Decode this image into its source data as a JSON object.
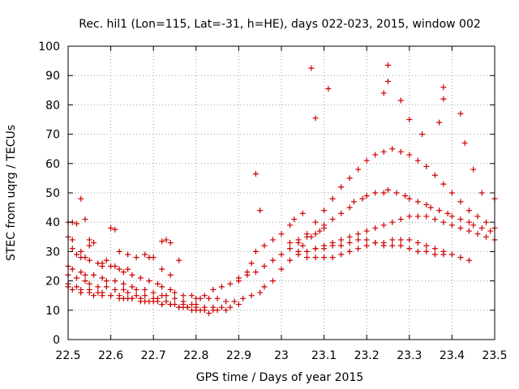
{
  "chart_data": {
    "type": "scatter",
    "title": "Rec. hil1 (Lon=115, Lat=-31, h=HE), days 022-023, 2015, window 002",
    "xlabel": "GPS time / Days of year 2015",
    "ylabel": "STEC from uqrg / TECUs",
    "xlim": [
      22.5,
      23.5
    ],
    "ylim": [
      0,
      100
    ],
    "xticks": [
      22.5,
      22.6,
      22.7,
      22.8,
      22.9,
      23.0,
      23.1,
      23.2,
      23.3,
      23.4,
      23.5
    ],
    "xtick_labels": [
      "22.5",
      "22.6",
      "22.7",
      "22.8",
      "22.9",
      "23",
      "23.1",
      "23.2",
      "23.3",
      "23.4",
      "23.5"
    ],
    "yticks": [
      0,
      10,
      20,
      30,
      40,
      50,
      60,
      70,
      80,
      90,
      100
    ],
    "ytick_labels": [
      "0",
      "10",
      "20",
      "30",
      "40",
      "50",
      "60",
      "70",
      "80",
      "90",
      "100"
    ],
    "grid": true,
    "marker": "plus",
    "color": "#cc0000",
    "series": [
      {
        "name": "STEC",
        "x": [
          22.5,
          22.51,
          22.52,
          22.53,
          22.54,
          22.55,
          22.57,
          22.58,
          22.6,
          22.62,
          22.63,
          22.65,
          22.67,
          22.69,
          22.71,
          22.72,
          22.74,
          22.75,
          22.77,
          22.79,
          22.81,
          22.83,
          22.85,
          22.87,
          22.89,
          22.91,
          22.93,
          22.95,
          22.96,
          22.98,
          22.5,
          22.51,
          22.53,
          22.54,
          22.56,
          22.58,
          22.59,
          22.61,
          22.63,
          22.65,
          22.66,
          22.68,
          22.7,
          22.72,
          22.73,
          22.75,
          22.77,
          22.79,
          22.8,
          22.82,
          22.84,
          22.86,
          22.88,
          22.9,
          22.5,
          22.52,
          22.54,
          22.55,
          22.57,
          22.59,
          22.61,
          22.63,
          22.64,
          22.66,
          22.68,
          22.7,
          22.71,
          22.73,
          22.75,
          22.77,
          22.78,
          22.8,
          22.82,
          22.84,
          22.85,
          22.87,
          22.5,
          22.52,
          22.53,
          22.55,
          22.57,
          22.58,
          22.6,
          22.62,
          22.64,
          22.65,
          22.67,
          22.69,
          22.71,
          22.72,
          22.74,
          22.76,
          22.78,
          22.8,
          22.81,
          22.83,
          22.5,
          22.51,
          22.53,
          22.55,
          22.56,
          22.58,
          22.6,
          22.62,
          22.63,
          22.65,
          22.67,
          22.68,
          22.7,
          22.72,
          22.74,
          22.76,
          22.77,
          22.79,
          22.51,
          22.54,
          22.56,
          22.6,
          22.62,
          22.64,
          22.69,
          22.73,
          22.74,
          22.76,
          22.5,
          22.51,
          22.53,
          22.55,
          22.58,
          22.59,
          22.61,
          22.64,
          22.66,
          22.68,
          22.7,
          22.72,
          22.74,
          22.8,
          22.82,
          22.84,
          22.86,
          22.88,
          22.9,
          22.92,
          22.94,
          22.96,
          22.98,
          23.0,
          23.02,
          23.04,
          23.06,
          23.08,
          23.1,
          22.9,
          22.92,
          22.93,
          22.94,
          22.96,
          22.98,
          23.0,
          23.02,
          23.03,
          23.05,
          23.0,
          23.02,
          23.04,
          23.05,
          23.07,
          23.09,
          23.1,
          23.12,
          23.14,
          23.16,
          23.17,
          23.19,
          23.2,
          23.22,
          23.24,
          23.25,
          23.27,
          23.29,
          23.3,
          23.32,
          23.34,
          23.35,
          23.37,
          23.39,
          23.4,
          23.42,
          23.44,
          23.45,
          23.47,
          23.49,
          23.02,
          23.04,
          23.06,
          23.08,
          23.1,
          23.12,
          23.14,
          23.16,
          23.18,
          23.2,
          23.22,
          23.24,
          23.26,
          23.28,
          23.3,
          23.32,
          23.34,
          23.36,
          23.38,
          23.4,
          23.42,
          23.44,
          23.46,
          23.48,
          23.5,
          23.04,
          23.06,
          23.08,
          23.1,
          23.12,
          23.14,
          23.16,
          23.18,
          23.2,
          23.22,
          23.24,
          23.26,
          23.28,
          23.3,
          23.32,
          23.34,
          23.36,
          23.38,
          23.4,
          23.42,
          23.44,
          23.46,
          23.48,
          23.5,
          23.06,
          23.08,
          23.1,
          23.12,
          23.14,
          23.16,
          23.18,
          23.2,
          23.22,
          23.24,
          23.26,
          23.28,
          23.3,
          23.32,
          23.34,
          23.36,
          23.38,
          23.4,
          23.42,
          23.44,
          23.08,
          23.1,
          23.12,
          23.14,
          23.16,
          23.18,
          23.2,
          23.22,
          23.24,
          23.26,
          23.28,
          23.3,
          23.32,
          23.34,
          23.36,
          23.38,
          22.94,
          22.95,
          23.07,
          23.08,
          23.11,
          23.25,
          23.25,
          23.24,
          23.28,
          23.38,
          23.38,
          23.42,
          23.43,
          23.3,
          23.33,
          23.37,
          23.45,
          23.5,
          23.47,
          22.72,
          22.53,
          22.52,
          22.55,
          22.61
        ],
        "y": [
          35,
          31,
          29,
          28,
          28,
          27,
          26,
          25,
          25,
          24,
          23,
          22,
          21,
          20,
          19,
          18,
          17,
          16,
          15,
          15,
          14,
          14,
          14,
          13,
          13,
          14,
          15,
          16,
          18,
          20,
          25,
          24,
          23,
          22,
          22,
          21,
          20,
          20,
          19,
          18,
          17,
          17,
          16,
          15,
          15,
          14,
          13,
          12,
          12,
          11,
          11,
          11,
          11,
          12,
          22,
          21,
          20,
          19,
          18,
          18,
          17,
          17,
          16,
          15,
          15,
          14,
          14,
          13,
          12,
          12,
          11,
          11,
          10,
          10,
          10,
          10,
          19,
          18,
          17,
          17,
          16,
          16,
          15,
          15,
          14,
          14,
          14,
          13,
          13,
          12,
          12,
          11,
          11,
          10,
          10,
          9,
          18,
          17,
          16,
          16,
          15,
          15,
          15,
          14,
          14,
          14,
          13,
          13,
          13,
          12,
          12,
          11,
          11,
          10,
          40,
          41,
          33,
          38,
          30,
          29,
          28,
          34,
          33,
          27,
          40,
          34,
          30,
          32,
          26,
          27,
          25,
          24,
          28,
          29,
          28,
          24,
          22,
          14,
          15,
          17,
          18,
          19,
          20,
          22,
          23,
          25,
          27,
          29,
          31,
          33,
          35,
          36,
          38,
          21,
          23,
          26,
          30,
          32,
          34,
          36,
          39,
          41,
          43,
          24,
          27,
          30,
          32,
          35,
          37,
          39,
          41,
          43,
          45,
          47,
          48,
          49,
          50,
          50,
          51,
          50,
          49,
          48,
          47,
          46,
          45,
          44,
          43,
          42,
          41,
          40,
          39,
          38,
          37,
          33,
          34,
          36,
          40,
          44,
          48,
          52,
          55,
          58,
          61,
          63,
          64,
          65,
          64,
          63,
          61,
          59,
          56,
          53,
          50,
          47,
          44,
          42,
          40,
          38,
          29,
          30,
          31,
          32,
          33,
          34,
          35,
          36,
          37,
          38,
          39,
          40,
          41,
          42,
          42,
          42,
          41,
          40,
          39,
          38,
          37,
          36,
          35,
          34,
          28,
          28,
          28,
          28,
          29,
          30,
          31,
          32,
          33,
          33,
          34,
          34,
          34,
          33,
          32,
          31,
          30,
          29,
          28,
          27,
          31,
          31,
          32,
          32,
          33,
          34,
          34,
          33,
          32,
          32,
          32,
          31,
          30,
          30,
          29,
          29,
          56.5,
          44,
          92.5,
          75.5,
          85.5,
          93.5,
          88,
          84,
          81.5,
          86,
          82,
          77,
          67,
          75,
          70,
          74,
          58,
          48,
          50,
          33.5,
          48,
          39.5,
          34,
          37.5
        ]
      }
    ]
  }
}
